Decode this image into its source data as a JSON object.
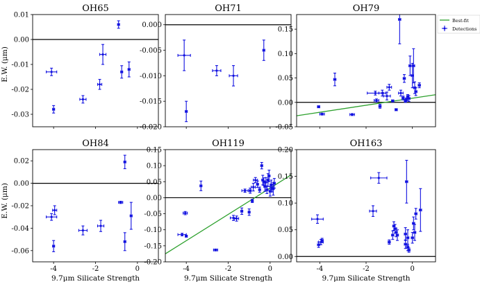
{
  "figure": {
    "xlabel": "9.7μm Silicate Strength",
    "ylabel": "E.W. (μm)",
    "legend": {
      "position": "top-right, outside",
      "fit_label": "Best-fit",
      "det_label": "Detections"
    },
    "colors": {
      "data": "#1010e0",
      "fit": "#2ca02c",
      "axis": "#000000"
    }
  },
  "chart_data": [
    {
      "type": "scatter",
      "title": "OH65",
      "xlim": [
        -5,
        1
      ],
      "ylim": [
        -0.035,
        0.01
      ],
      "xticks": [
        "-4",
        "-2",
        "0"
      ],
      "xtick_vals": [
        -4,
        -2,
        0
      ],
      "yticks": [
        "0.01",
        "0.00",
        "-0.01",
        "-0.02",
        "-0.03"
      ],
      "ytick_vals": [
        0.01,
        0.0,
        -0.01,
        -0.02,
        -0.03
      ],
      "show_xtick_labels": false,
      "show_xlabel": false,
      "show_ylabel": true,
      "zero_line": true,
      "points": [
        {
          "x": -4.1,
          "y": -0.013,
          "xerr": 0.25,
          "yerr": 0.0015
        },
        {
          "x": -4.0,
          "y": -0.028,
          "xerr": 0.05,
          "yerr": 0.0015
        },
        {
          "x": -2.6,
          "y": -0.024,
          "xerr": 0.15,
          "yerr": 0.0015
        },
        {
          "x": -1.8,
          "y": -0.018,
          "xerr": 0.1,
          "yerr": 0.002
        },
        {
          "x": -1.65,
          "y": -0.006,
          "xerr": 0.15,
          "yerr": 0.004
        },
        {
          "x": -0.9,
          "y": 0.006,
          "xerr": 0.05,
          "yerr": 0.0015
        },
        {
          "x": -0.75,
          "y": -0.013,
          "xerr": 0.05,
          "yerr": 0.0025
        },
        {
          "x": -0.4,
          "y": -0.012,
          "xerr": 0.05,
          "yerr": 0.003
        }
      ]
    },
    {
      "type": "scatter",
      "title": "OH71",
      "xlim": [
        -5,
        1
      ],
      "ylim": [
        -0.02,
        0.002
      ],
      "xticks": [
        "-4",
        "-2",
        "0"
      ],
      "xtick_vals": [
        -4,
        -2,
        0
      ],
      "yticks": [
        "0.000",
        "-0.005",
        "-0.010",
        "-0.015",
        "-0.020"
      ],
      "ytick_vals": [
        0.0,
        -0.005,
        -0.01,
        -0.015,
        -0.02
      ],
      "show_xtick_labels": false,
      "show_xlabel": false,
      "show_ylabel": false,
      "zero_line": true,
      "points": [
        {
          "x": -4.1,
          "y": -0.006,
          "xerr": 0.3,
          "yerr": 0.003
        },
        {
          "x": -4.0,
          "y": -0.017,
          "xerr": 0.05,
          "yerr": 0.002
        },
        {
          "x": -2.55,
          "y": -0.009,
          "xerr": 0.2,
          "yerr": 0.001
        },
        {
          "x": -1.75,
          "y": -0.01,
          "xerr": 0.2,
          "yerr": 0.002
        },
        {
          "x": -0.3,
          "y": -0.005,
          "xerr": 0.05,
          "yerr": 0.002
        }
      ]
    },
    {
      "type": "scatter",
      "title": "OH79",
      "xlim": [
        -5,
        1
      ],
      "ylim": [
        -0.05,
        0.18
      ],
      "xticks": [
        "-4",
        "-2",
        "0"
      ],
      "xtick_vals": [
        -4,
        -2,
        0
      ],
      "yticks": [
        "0.15",
        "0.10",
        "0.05",
        "0.00",
        "-0.05"
      ],
      "ytick_vals": [
        0.15,
        0.1,
        0.05,
        0.0,
        -0.05
      ],
      "show_xtick_labels": false,
      "show_xlabel": false,
      "show_ylabel": false,
      "zero_line": true,
      "fit": {
        "slope": 0.0072,
        "intercept": 0.0085
      },
      "points": [
        {
          "x": -4.05,
          "y": -0.009,
          "xerr": 0.05,
          "yerr": 0.002
        },
        {
          "x": -3.9,
          "y": -0.024,
          "xerr": 0.1,
          "yerr": 0.002
        },
        {
          "x": -3.35,
          "y": 0.047,
          "xerr": 0.05,
          "yerr": 0.013
        },
        {
          "x": -2.6,
          "y": -0.025,
          "xerr": 0.1,
          "yerr": 0.002
        },
        {
          "x": -1.6,
          "y": 0.019,
          "xerr": 0.35,
          "yerr": 0.004
        },
        {
          "x": -1.3,
          "y": 0.019,
          "xerr": 0.15,
          "yerr": 0.006
        },
        {
          "x": -1.1,
          "y": 0.013,
          "xerr": 0.15,
          "yerr": 0.008
        },
        {
          "x": -1.0,
          "y": 0.031,
          "xerr": 0.1,
          "yerr": 0.006
        },
        {
          "x": -0.85,
          "y": 0.003,
          "xerr": 0.05,
          "yerr": 0.002
        },
        {
          "x": -0.7,
          "y": -0.015,
          "xerr": 0.05,
          "yerr": 0.002
        },
        {
          "x": -1.55,
          "y": 0.004,
          "xerr": 0.1,
          "yerr": 0.003
        },
        {
          "x": -1.4,
          "y": -0.008,
          "xerr": 0.05,
          "yerr": 0.004
        },
        {
          "x": -0.5,
          "y": 0.019,
          "xerr": 0.1,
          "yerr": 0.006
        },
        {
          "x": -0.4,
          "y": 0.009,
          "xerr": 0.05,
          "yerr": 0.004
        },
        {
          "x": -0.35,
          "y": 0.049,
          "xerr": 0.05,
          "yerr": 0.008
        },
        {
          "x": -0.3,
          "y": 0.003,
          "xerr": 0.05,
          "yerr": 0.003
        },
        {
          "x": -0.25,
          "y": 0.006,
          "xerr": 0.05,
          "yerr": 0.003
        },
        {
          "x": -0.2,
          "y": 0.012,
          "xerr": 0.05,
          "yerr": 0.004
        },
        {
          "x": -0.15,
          "y": 0.008,
          "xerr": 0.05,
          "yerr": 0.006
        },
        {
          "x": -0.1,
          "y": 0.075,
          "xerr": 0.05,
          "yerr": 0.02
        },
        {
          "x": 0.0,
          "y": 0.055,
          "xerr": 0.05,
          "yerr": 0.025
        },
        {
          "x": 0.05,
          "y": 0.075,
          "xerr": 0.05,
          "yerr": 0.035
        },
        {
          "x": 0.1,
          "y": 0.03,
          "xerr": 0.05,
          "yerr": 0.012
        },
        {
          "x": 0.15,
          "y": 0.022,
          "xerr": 0.05,
          "yerr": 0.008
        },
        {
          "x": 0.3,
          "y": 0.035,
          "xerr": 0.05,
          "yerr": 0.005
        },
        {
          "x": -0.55,
          "y": 0.17,
          "xerr": 0.05,
          "yerr": 0.05
        }
      ]
    },
    {
      "type": "scatter",
      "title": "OH84",
      "xlim": [
        -5,
        1
      ],
      "ylim": [
        -0.07,
        0.03
      ],
      "xticks": [
        "-4",
        "-2",
        "0"
      ],
      "xtick_vals": [
        -4,
        -2,
        0
      ],
      "yticks": [
        "0.02",
        "0.00",
        "-0.02",
        "-0.04",
        "-0.06"
      ],
      "ytick_vals": [
        0.02,
        0.0,
        -0.02,
        -0.04,
        -0.06
      ],
      "show_xtick_labels": true,
      "show_xlabel": true,
      "show_ylabel": true,
      "zero_line": true,
      "points": [
        {
          "x": -4.1,
          "y": -0.03,
          "xerr": 0.25,
          "yerr": 0.003
        },
        {
          "x": -3.95,
          "y": -0.024,
          "xerr": 0.1,
          "yerr": 0.004
        },
        {
          "x": -4.0,
          "y": -0.056,
          "xerr": 0.05,
          "yerr": 0.005
        },
        {
          "x": -2.6,
          "y": -0.042,
          "xerr": 0.2,
          "yerr": 0.004
        },
        {
          "x": -1.75,
          "y": -0.038,
          "xerr": 0.15,
          "yerr": 0.005
        },
        {
          "x": -0.8,
          "y": -0.017,
          "xerr": 0.1,
          "yerr": 0.001
        },
        {
          "x": -0.6,
          "y": 0.019,
          "xerr": 0.05,
          "yerr": 0.006
        },
        {
          "x": -0.6,
          "y": -0.052,
          "xerr": 0.05,
          "yerr": 0.008
        },
        {
          "x": -0.3,
          "y": -0.029,
          "xerr": 0.05,
          "yerr": 0.012
        }
      ]
    },
    {
      "type": "scatter",
      "title": "OH119",
      "xlim": [
        -5,
        1
      ],
      "ylim": [
        -0.2,
        0.15
      ],
      "xticks": [
        "-4",
        "-2",
        "0"
      ],
      "xtick_vals": [
        -4,
        -2,
        0
      ],
      "yticks": [
        "0.15",
        "0.10",
        "0.05",
        "0.00",
        "-0.05",
        "-0.10",
        "-0.15",
        "-0.20"
      ],
      "ytick_vals": [
        0.15,
        0.1,
        0.05,
        0.0,
        -0.05,
        -0.1,
        -0.15,
        -0.2
      ],
      "show_xtick_labels": true,
      "show_xlabel": true,
      "show_ylabel": false,
      "zero_line": true,
      "fit": {
        "slope": 0.041,
        "intercept": 0.03
      },
      "points": [
        {
          "x": -4.05,
          "y": -0.048,
          "xerr": 0.1,
          "yerr": 0.005
        },
        {
          "x": -4.2,
          "y": -0.115,
          "xerr": 0.2,
          "yerr": 0.004
        },
        {
          "x": -4.0,
          "y": -0.12,
          "xerr": 0.05,
          "yerr": 0.003
        },
        {
          "x": -3.3,
          "y": 0.037,
          "xerr": 0.05,
          "yerr": 0.015
        },
        {
          "x": -2.6,
          "y": -0.163,
          "xerr": 0.1,
          "yerr": 0.003
        },
        {
          "x": -1.75,
          "y": -0.063,
          "xerr": 0.15,
          "yerr": 0.008
        },
        {
          "x": -1.6,
          "y": -0.065,
          "xerr": 0.1,
          "yerr": 0.008
        },
        {
          "x": -1.35,
          "y": -0.042,
          "xerr": 0.05,
          "yerr": 0.01
        },
        {
          "x": -1.2,
          "y": 0.022,
          "xerr": 0.15,
          "yerr": 0.005
        },
        {
          "x": -1.0,
          "y": -0.045,
          "xerr": 0.05,
          "yerr": 0.01
        },
        {
          "x": -0.95,
          "y": 0.022,
          "xerr": 0.05,
          "yerr": 0.008
        },
        {
          "x": -0.85,
          "y": -0.01,
          "xerr": 0.05,
          "yerr": 0.005
        },
        {
          "x": -0.8,
          "y": 0.033,
          "xerr": 0.1,
          "yerr": 0.012
        },
        {
          "x": -0.7,
          "y": 0.055,
          "xerr": 0.1,
          "yerr": 0.008
        },
        {
          "x": -0.6,
          "y": 0.042,
          "xerr": 0.05,
          "yerr": 0.01
        },
        {
          "x": -0.5,
          "y": 0.025,
          "xerr": 0.05,
          "yerr": 0.008
        },
        {
          "x": -0.4,
          "y": 0.1,
          "xerr": 0.05,
          "yerr": 0.01
        },
        {
          "x": -0.35,
          "y": 0.055,
          "xerr": 0.05,
          "yerr": 0.015
        },
        {
          "x": -0.3,
          "y": 0.05,
          "xerr": 0.05,
          "yerr": 0.012
        },
        {
          "x": -0.25,
          "y": 0.035,
          "xerr": 0.05,
          "yerr": 0.015
        },
        {
          "x": -0.2,
          "y": 0.048,
          "xerr": 0.1,
          "yerr": 0.015
        },
        {
          "x": -0.15,
          "y": 0.025,
          "xerr": 0.05,
          "yerr": 0.012
        },
        {
          "x": -0.1,
          "y": 0.055,
          "xerr": 0.05,
          "yerr": 0.02
        },
        {
          "x": -0.05,
          "y": 0.068,
          "xerr": 0.05,
          "yerr": 0.018
        },
        {
          "x": 0.0,
          "y": 0.02,
          "xerr": 0.05,
          "yerr": 0.015
        },
        {
          "x": 0.05,
          "y": 0.04,
          "xerr": 0.05,
          "yerr": 0.015
        },
        {
          "x": 0.1,
          "y": 0.03,
          "xerr": 0.05,
          "yerr": 0.012
        },
        {
          "x": 0.15,
          "y": 0.028,
          "xerr": 0.05,
          "yerr": 0.02
        },
        {
          "x": 0.2,
          "y": 0.045,
          "xerr": 0.05,
          "yerr": 0.015
        }
      ]
    },
    {
      "type": "scatter",
      "title": "OH163",
      "xlim": [
        -5,
        1
      ],
      "ylim": [
        -0.01,
        0.2
      ],
      "xticks": [
        "-4",
        "-2",
        "0"
      ],
      "xtick_vals": [
        -4,
        -2,
        0
      ],
      "yticks": [
        "0.20",
        "0.15",
        "0.10",
        "0.05",
        "0.00"
      ],
      "ytick_vals": [
        0.2,
        0.15,
        0.1,
        0.05,
        0.0
      ],
      "show_xtick_labels": true,
      "show_xlabel": true,
      "show_ylabel": false,
      "zero_line": true,
      "points": [
        {
          "x": -4.1,
          "y": 0.07,
          "xerr": 0.25,
          "yerr": 0.008
        },
        {
          "x": -4.05,
          "y": 0.022,
          "xerr": 0.05,
          "yerr": 0.005
        },
        {
          "x": -3.95,
          "y": 0.027,
          "xerr": 0.1,
          "yerr": 0.005
        },
        {
          "x": -3.9,
          "y": 0.03,
          "xerr": 0.05,
          "yerr": 0.004
        },
        {
          "x": -1.7,
          "y": 0.085,
          "xerr": 0.15,
          "yerr": 0.01
        },
        {
          "x": -1.45,
          "y": 0.147,
          "xerr": 0.35,
          "yerr": 0.01
        },
        {
          "x": -1.0,
          "y": 0.027,
          "xerr": 0.05,
          "yerr": 0.004
        },
        {
          "x": -0.85,
          "y": 0.04,
          "xerr": 0.05,
          "yerr": 0.008
        },
        {
          "x": -0.8,
          "y": 0.057,
          "xerr": 0.05,
          "yerr": 0.008
        },
        {
          "x": -0.75,
          "y": 0.052,
          "xerr": 0.05,
          "yerr": 0.008
        },
        {
          "x": -0.7,
          "y": 0.045,
          "xerr": 0.05,
          "yerr": 0.008
        },
        {
          "x": -0.65,
          "y": 0.04,
          "xerr": 0.05,
          "yerr": 0.01
        },
        {
          "x": -0.3,
          "y": 0.042,
          "xerr": 0.05,
          "yerr": 0.012
        },
        {
          "x": -0.3,
          "y": 0.023,
          "xerr": 0.05,
          "yerr": 0.008
        },
        {
          "x": -0.25,
          "y": 0.14,
          "xerr": 0.05,
          "yerr": 0.04
        },
        {
          "x": -0.2,
          "y": 0.035,
          "xerr": 0.05,
          "yerr": 0.015
        },
        {
          "x": -0.2,
          "y": 0.017,
          "xerr": 0.05,
          "yerr": 0.006
        },
        {
          "x": -0.15,
          "y": 0.012,
          "xerr": 0.05,
          "yerr": 0.004
        },
        {
          "x": 0.0,
          "y": 0.035,
          "xerr": 0.05,
          "yerr": 0.01
        },
        {
          "x": 0.05,
          "y": 0.062,
          "xerr": 0.05,
          "yerr": 0.012
        },
        {
          "x": 0.1,
          "y": 0.045,
          "xerr": 0.05,
          "yerr": 0.015
        },
        {
          "x": 0.15,
          "y": 0.08,
          "xerr": 0.05,
          "yerr": 0.01
        },
        {
          "x": 0.35,
          "y": 0.087,
          "xerr": 0.05,
          "yerr": 0.04
        }
      ]
    }
  ]
}
